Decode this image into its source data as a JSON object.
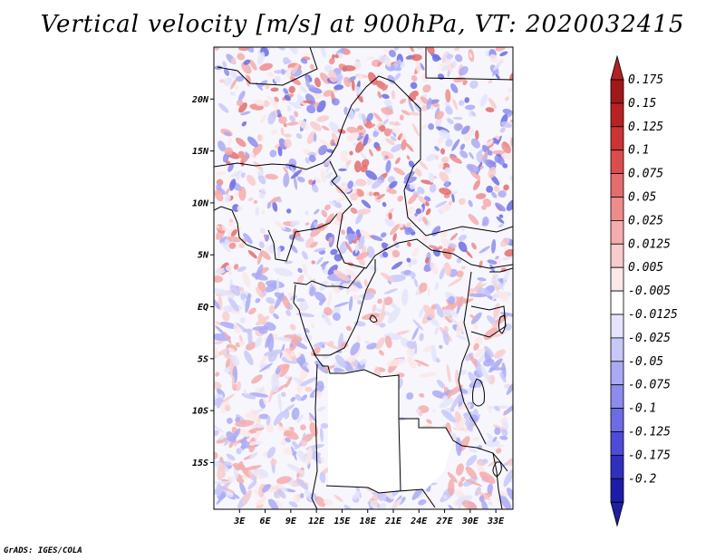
{
  "title": "Vertical velocity [m/s] at 900hPa, VT: 2020032415",
  "footer": "GrADS: IGES/COLA",
  "map": {
    "lon_range": [
      0,
      35
    ],
    "lat_range": [
      -19.5,
      25
    ],
    "lat_ticks": [
      {
        "value": 20,
        "label": "20N"
      },
      {
        "value": 15,
        "label": "15N"
      },
      {
        "value": 10,
        "label": "10N"
      },
      {
        "value": 5,
        "label": "5N"
      },
      {
        "value": 0,
        "label": "EQ"
      },
      {
        "value": -5,
        "label": "5S"
      },
      {
        "value": -10,
        "label": "10S"
      },
      {
        "value": -15,
        "label": "15S"
      }
    ],
    "lon_ticks": [
      {
        "value": 3,
        "label": "3E"
      },
      {
        "value": 6,
        "label": "6E"
      },
      {
        "value": 9,
        "label": "9E"
      },
      {
        "value": 12,
        "label": "12E"
      },
      {
        "value": 15,
        "label": "15E"
      },
      {
        "value": 18,
        "label": "18E"
      },
      {
        "value": 21,
        "label": "21E"
      },
      {
        "value": 24,
        "label": "24E"
      },
      {
        "value": 27,
        "label": "27E"
      },
      {
        "value": 30,
        "label": "30E"
      },
      {
        "value": 33,
        "label": "33E"
      }
    ]
  },
  "colorbar": {
    "labels": [
      "0.175",
      "0.15",
      "0.125",
      "0.1",
      "0.075",
      "0.05",
      "0.025",
      "0.0125",
      "0.005",
      "-0.005",
      "-0.0125",
      "-0.025",
      "-0.05",
      "-0.075",
      "-0.1",
      "-0.125",
      "-0.175",
      "-0.2"
    ],
    "colors": [
      "#a01818",
      "#b82222",
      "#cc3434",
      "#dc4c4c",
      "#e46c6c",
      "#ee8c8c",
      "#f4acac",
      "#f8cccc",
      "#fce8e8",
      "#ffffff",
      "#e4e4fc",
      "#c8c8f8",
      "#aaaaf4",
      "#8c8cee",
      "#6c6ce4",
      "#4c4cd8",
      "#3030c0",
      "#1c1caa",
      "#10109a"
    ],
    "top_arrow_color": "#b22222",
    "bottom_arrow_color": "#1e1ea0"
  }
}
